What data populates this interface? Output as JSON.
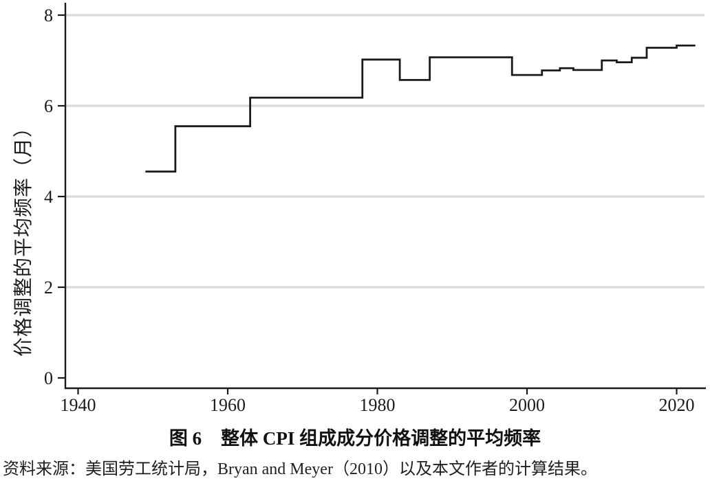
{
  "figure": {
    "caption_label": "图 6",
    "caption_title": "整体 CPI 组成成分价格调整的平均频率",
    "source_text": "资料来源：美国劳工统计局，Bryan and Meyer（2010）以及本文作者的计算结果。"
  },
  "chart_data": {
    "type": "line",
    "line_style": "step",
    "title": "图 6 整体 CPI 组成成分价格调整的平均频率",
    "xlabel": "",
    "ylabel": "价格调整的平均频率（月）",
    "x_ticks": [
      1940,
      1960,
      1980,
      2000,
      2020
    ],
    "y_ticks": [
      0,
      2,
      4,
      6,
      8
    ],
    "xlim": [
      1938.3,
      2023.6
    ],
    "ylim": [
      -0.23,
      8.26
    ],
    "grid": "horizontal-gridlines-at-2-4-6-8",
    "legend": "none",
    "line_color": "#1a1a1a",
    "grid_color": "#dadada",
    "axis_color": "#1a1a1a",
    "series": [
      {
        "name": "整体CPI组成成分价格调整的平均频率",
        "step_points": [
          {
            "year": 1949,
            "value": 4.55
          },
          {
            "year": 1953,
            "value": 5.55
          },
          {
            "year": 1963,
            "value": 6.18
          },
          {
            "year": 1978,
            "value": 7.02
          },
          {
            "year": 1983,
            "value": 6.57
          },
          {
            "year": 1987,
            "value": 7.07
          },
          {
            "year": 1998,
            "value": 6.68
          },
          {
            "year": 2002,
            "value": 6.78
          },
          {
            "year": 2004.4,
            "value": 6.83
          },
          {
            "year": 2006.2,
            "value": 6.79
          },
          {
            "year": 2010,
            "value": 7.0
          },
          {
            "year": 2012,
            "value": 6.96
          },
          {
            "year": 2014,
            "value": 7.06
          },
          {
            "year": 2016,
            "value": 7.28
          },
          {
            "year": 2020,
            "value": 7.33
          }
        ],
        "end_year": 2022.5
      }
    ]
  }
}
